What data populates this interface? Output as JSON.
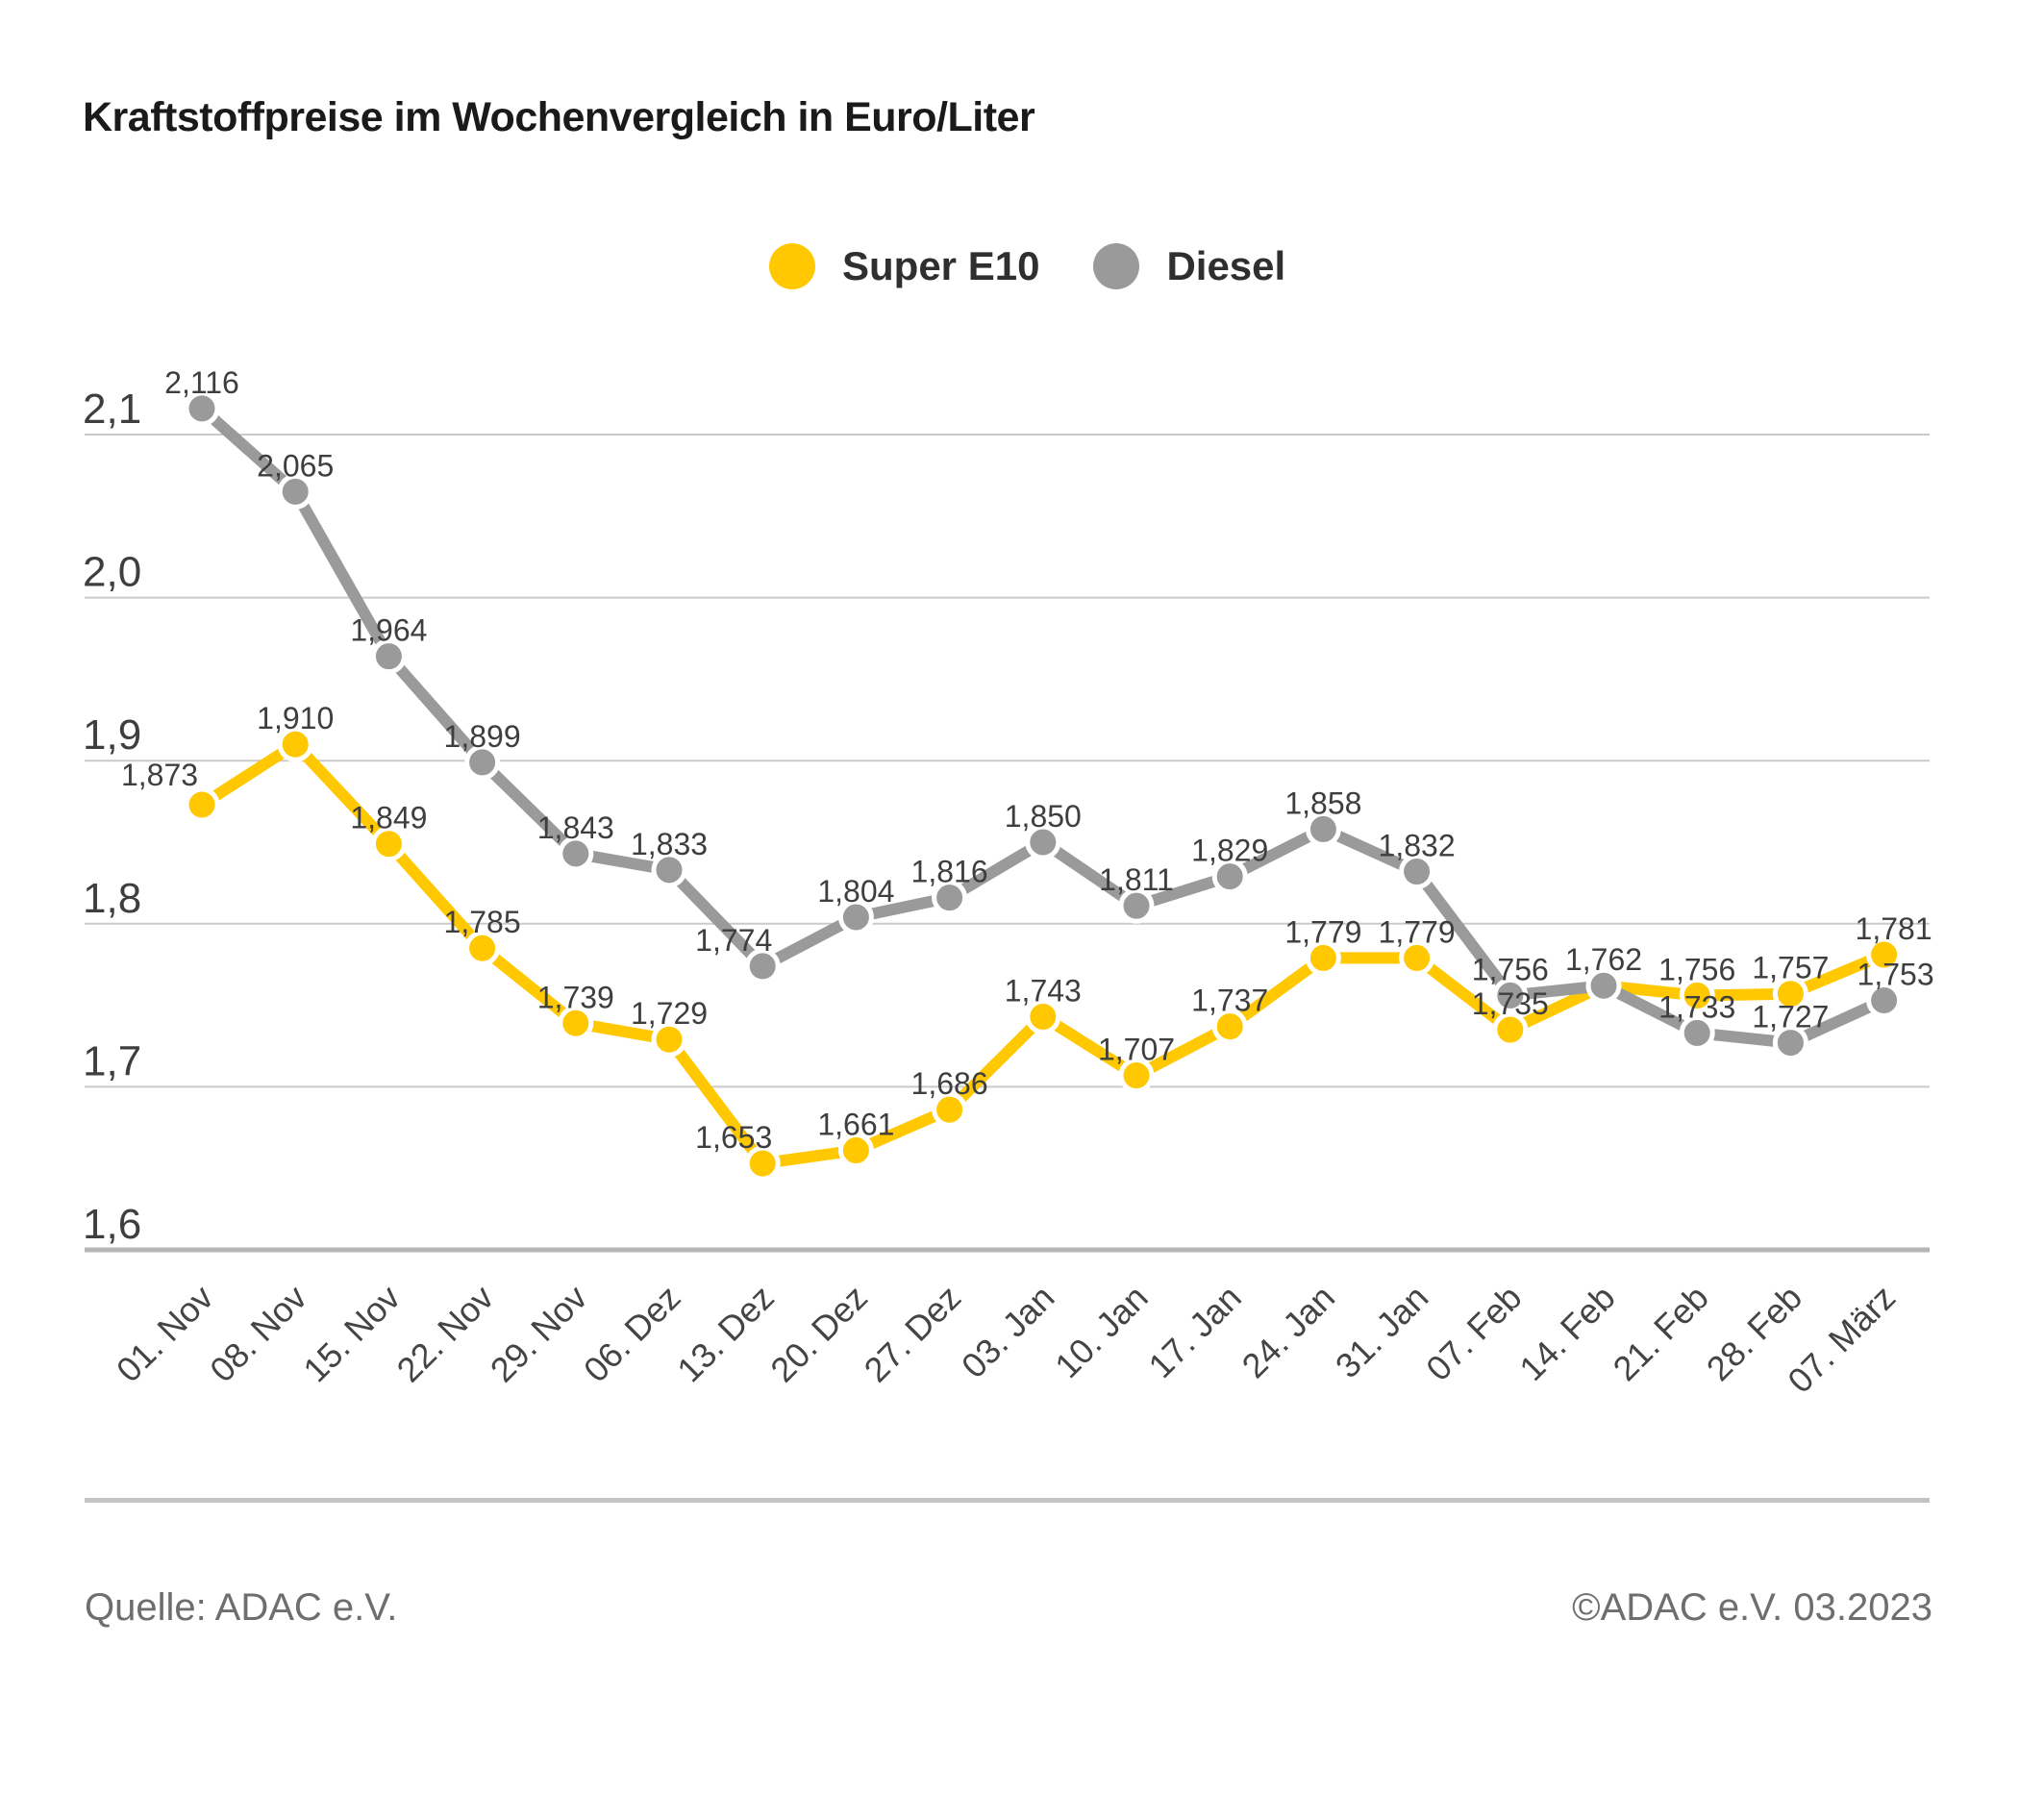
{
  "title": "Kraftstoffpreise im Wochenvergleich in Euro/Liter",
  "footer": {
    "source": "Quelle: ADAC e.V.",
    "copyright": "©ADAC e.V. 03.2023"
  },
  "chart_data": {
    "type": "line",
    "title": "Kraftstoffpreise im Wochenvergleich in Euro/Liter",
    "x": [
      "01. Nov",
      "08. Nov",
      "15. Nov",
      "22. Nov",
      "29. Nov",
      "06. Dez",
      "13. Dez",
      "20. Dez",
      "27. Dez",
      "03. Jan",
      "10. Jan",
      "17. Jan",
      "24. Jan",
      "31. Jan",
      "07. Feb",
      "14. Feb",
      "21. Feb",
      "28. Feb",
      "07. März"
    ],
    "series": [
      {
        "name": "Super E10",
        "color": "#FFC800",
        "values": [
          1.873,
          1.91,
          1.849,
          1.785,
          1.739,
          1.729,
          1.653,
          1.661,
          1.686,
          1.743,
          1.707,
          1.737,
          1.779,
          1.779,
          1.735,
          1.762,
          1.756,
          1.757,
          1.781
        ],
        "labels": [
          "1,873",
          "1,910",
          "1,849",
          "1,785",
          "1,739",
          "1,729",
          "1,653",
          "1,661",
          "1,686",
          "1,743",
          "1,707",
          "1,737",
          "1,779",
          "1,779",
          "1,735",
          "",
          "1,756",
          "1,757",
          "1,781"
        ]
      },
      {
        "name": "Diesel",
        "color": "#9A9A9A",
        "values": [
          2.116,
          2.065,
          1.964,
          1.899,
          1.843,
          1.833,
          1.774,
          1.804,
          1.816,
          1.85,
          1.811,
          1.829,
          1.858,
          1.832,
          1.756,
          1.762,
          1.733,
          1.727,
          1.753
        ],
        "labels": [
          "2,116",
          "2,065",
          "1,964",
          "1,899",
          "1,843",
          "1,833",
          "1,774",
          "1,804",
          "1,816",
          "1,850",
          "1,811",
          "1,829",
          "1,858",
          "1,832",
          "1,756",
          "1,762",
          "1,733",
          "1,727",
          "1,753"
        ]
      }
    ],
    "yticks": {
      "values": [
        2.1,
        2.0,
        1.9,
        1.8,
        1.7,
        1.6
      ],
      "labels": [
        "2,1",
        "2,0",
        "1,9",
        "1,8",
        "1,7",
        "1,6"
      ]
    },
    "ylim": [
      1.6,
      2.1
    ],
    "xlabel": "",
    "ylabel": "",
    "grid": true,
    "legend_position": "top-center"
  }
}
